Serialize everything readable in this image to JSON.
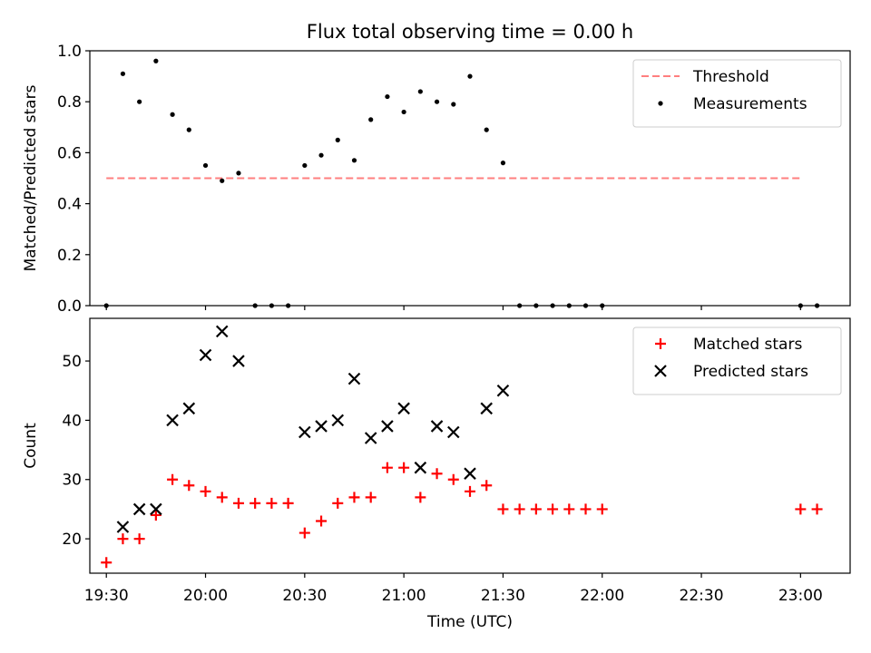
{
  "chart_data": {
    "title": "Flux total observing time = 0.00 h",
    "xlabel": "Time (UTC)",
    "xlim": [
      "19:25",
      "23:15"
    ],
    "xticks": [
      "19:30",
      "20:00",
      "20:30",
      "21:00",
      "21:30",
      "22:00",
      "22:30",
      "23:00"
    ],
    "panels": [
      {
        "type": "scatter",
        "ylabel": "Matched/Predicted stars",
        "ylim": [
          0,
          1.0
        ],
        "yticks": [
          "0.0",
          "0.2",
          "0.4",
          "0.6",
          "0.8",
          "1.0"
        ],
        "legend_position": "top-right",
        "threshold": {
          "name": "Threshold",
          "value": 0.5,
          "x_range": [
            "19:30",
            "23:00"
          ],
          "color": "#ff7f7f"
        },
        "series": [
          {
            "name": "Measurements",
            "color": "#000000",
            "marker": "dot",
            "points": [
              [
                "19:30",
                0.0
              ],
              [
                "19:35",
                0.91
              ],
              [
                "19:40",
                0.8
              ],
              [
                "19:45",
                0.96
              ],
              [
                "19:50",
                0.75
              ],
              [
                "19:55",
                0.69
              ],
              [
                "20:00",
                0.55
              ],
              [
                "20:05",
                0.49
              ],
              [
                "20:10",
                0.52
              ],
              [
                "20:15",
                0.0
              ],
              [
                "20:20",
                0.0
              ],
              [
                "20:25",
                0.0
              ],
              [
                "20:30",
                0.55
              ],
              [
                "20:35",
                0.59
              ],
              [
                "20:40",
                0.65
              ],
              [
                "20:45",
                0.57
              ],
              [
                "20:50",
                0.73
              ],
              [
                "20:55",
                0.82
              ],
              [
                "21:00",
                0.76
              ],
              [
                "21:05",
                0.84
              ],
              [
                "21:10",
                0.8
              ],
              [
                "21:15",
                0.79
              ],
              [
                "21:20",
                0.9
              ],
              [
                "21:25",
                0.69
              ],
              [
                "21:30",
                0.56
              ],
              [
                "21:35",
                0.0
              ],
              [
                "21:40",
                0.0
              ],
              [
                "21:45",
                0.0
              ],
              [
                "21:50",
                0.0
              ],
              [
                "21:55",
                0.0
              ],
              [
                "22:00",
                0.0
              ],
              [
                "23:00",
                0.0
              ],
              [
                "23:05",
                0.0
              ]
            ]
          }
        ]
      },
      {
        "type": "scatter",
        "ylabel": "Count",
        "ylim": [
          14.2,
          57.2
        ],
        "yticks": [
          "20",
          "30",
          "40",
          "50"
        ],
        "legend_position": "top-right",
        "series": [
          {
            "name": "Matched stars",
            "color": "#ff0000",
            "marker": "plus",
            "points": [
              [
                "19:30",
                16
              ],
              [
                "19:35",
                20
              ],
              [
                "19:40",
                20
              ],
              [
                "19:45",
                24
              ],
              [
                "19:50",
                30
              ],
              [
                "19:55",
                29
              ],
              [
                "20:00",
                28
              ],
              [
                "20:05",
                27
              ],
              [
                "20:10",
                26
              ],
              [
                "20:15",
                26
              ],
              [
                "20:20",
                26
              ],
              [
                "20:25",
                26
              ],
              [
                "20:30",
                21
              ],
              [
                "20:35",
                23
              ],
              [
                "20:40",
                26
              ],
              [
                "20:45",
                27
              ],
              [
                "20:50",
                27
              ],
              [
                "20:55",
                32
              ],
              [
                "21:00",
                32
              ],
              [
                "21:05",
                27
              ],
              [
                "21:10",
                31
              ],
              [
                "21:15",
                30
              ],
              [
                "21:20",
                28
              ],
              [
                "21:25",
                29
              ],
              [
                "21:30",
                25
              ],
              [
                "21:35",
                25
              ],
              [
                "21:40",
                25
              ],
              [
                "21:45",
                25
              ],
              [
                "21:50",
                25
              ],
              [
                "21:55",
                25
              ],
              [
                "22:00",
                25
              ],
              [
                "23:00",
                25
              ],
              [
                "23:05",
                25
              ]
            ]
          },
          {
            "name": "Predicted stars",
            "color": "#000000",
            "marker": "x",
            "points": [
              [
                "19:35",
                22
              ],
              [
                "19:40",
                25
              ],
              [
                "19:45",
                25
              ],
              [
                "19:50",
                40
              ],
              [
                "19:55",
                42
              ],
              [
                "20:00",
                51
              ],
              [
                "20:05",
                55
              ],
              [
                "20:10",
                50
              ],
              [
                "20:30",
                38
              ],
              [
                "20:35",
                39
              ],
              [
                "20:40",
                40
              ],
              [
                "20:45",
                47
              ],
              [
                "20:50",
                37
              ],
              [
                "20:55",
                39
              ],
              [
                "21:00",
                42
              ],
              [
                "21:05",
                32
              ],
              [
                "21:10",
                39
              ],
              [
                "21:15",
                38
              ],
              [
                "21:20",
                31
              ],
              [
                "21:25",
                42
              ],
              [
                "21:30",
                45
              ]
            ]
          }
        ]
      }
    ]
  }
}
